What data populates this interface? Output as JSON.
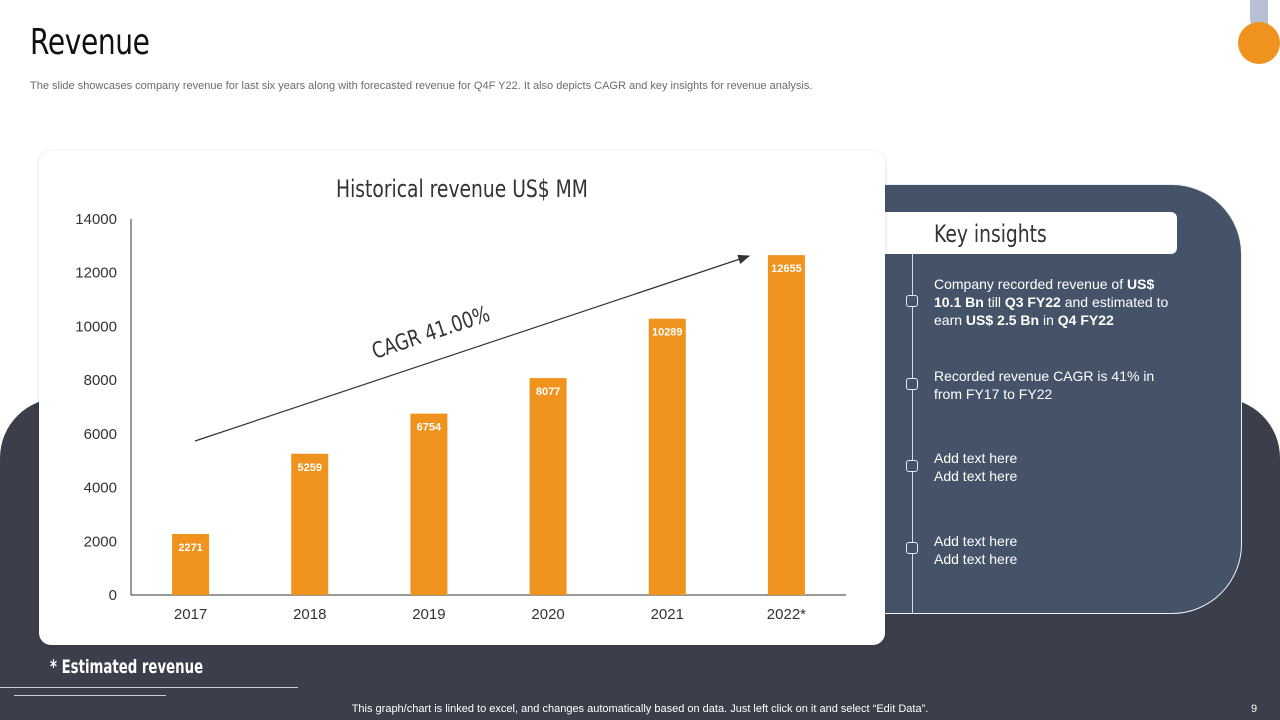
{
  "slide": {
    "title": "Revenue",
    "subtitle": "The slide showcases company revenue for last six years along with forecasted revenue for Q4F Y22. It also depicts CAGR and key insights for revenue analysis.",
    "footnote": "* Estimated revenue",
    "bottom_note": "This graph/chart is linked to excel, and changes automatically based on data. Just left click on it and select “Edit Data”.",
    "page_number": "9"
  },
  "insights": {
    "title": "Key insights",
    "items": [
      {
        "parts": [
          {
            "text": "Company recorded revenue of ",
            "bold": false
          },
          {
            "text": "US$ 10.1 Bn",
            "bold": true
          },
          {
            "text": " till ",
            "bold": false
          },
          {
            "text": "Q3 FY22",
            "bold": true
          },
          {
            "text": " and estimated to earn ",
            "bold": false
          },
          {
            "text": "US$ 2.5 Bn",
            "bold": true
          },
          {
            "text": " in ",
            "bold": false
          },
          {
            "text": "Q4 FY22",
            "bold": true
          }
        ]
      },
      {
        "parts": [
          {
            "text": "Recorded revenue CAGR is 41% in from FY17 to FY22",
            "bold": false
          }
        ]
      },
      {
        "parts": [
          {
            "text": "Add text here Add text here",
            "bold": false
          }
        ]
      },
      {
        "parts": [
          {
            "text": "Add text here Add text here",
            "bold": false
          }
        ]
      }
    ]
  },
  "chart_data": {
    "type": "bar",
    "title": "Historical revenue US$ MM",
    "categories": [
      "2017",
      "2018",
      "2019",
      "2020",
      "2021",
      "2022*"
    ],
    "values": [
      2271,
      5259,
      6754,
      8077,
      10289,
      12655
    ],
    "yticks": [
      "0",
      "2000",
      "4000",
      "6000",
      "8000",
      "10000",
      "12000",
      "14000"
    ],
    "ylim": [
      0,
      14000
    ],
    "annotation": "CAGR 41.00%",
    "bar_color": "#f0921e",
    "label_color": "#ffffff",
    "grid": false
  }
}
